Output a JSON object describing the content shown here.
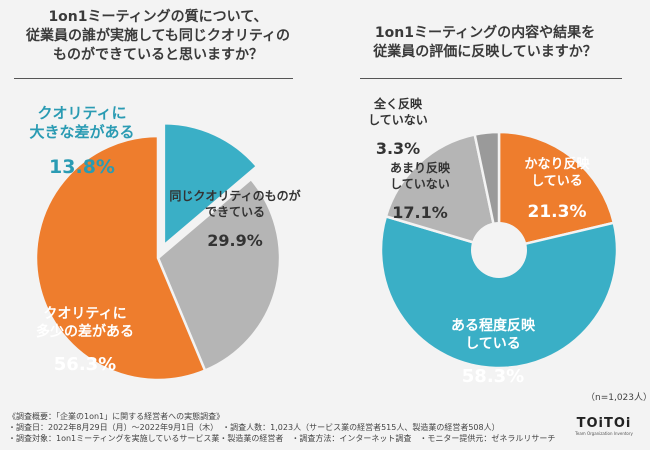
{
  "chart_data": [
    {
      "type": "pie",
      "title": "1on1ミーティングの質について、\n従業員の誰が実施しても同じクオリティの\nものができていると思いますか？",
      "categories": [
        "クオリティに大きな差がある",
        "同じクオリティのものができている",
        "クオリティに多少の差がある"
      ],
      "label_lines": [
        [
          "クオリティに",
          "大きな差がある"
        ],
        [
          "同じクオリティのものが",
          "できている"
        ],
        [
          "クオリティに",
          "多少の差がある"
        ]
      ],
      "values": [
        13.8,
        29.9,
        56.3
      ],
      "value_labels": [
        "13.8%",
        "29.9%",
        "56.3%"
      ],
      "colors": [
        "#3aafc6",
        "#b5b5b5",
        "#ee7d2d"
      ]
    },
    {
      "type": "pie",
      "title": "1on1ミーティングの内容や結果を\n従業員の評価に反映していますか？",
      "categories": [
        "かなり反映している",
        "ある程度反映している",
        "あまり反映していない",
        "全く反映していない"
      ],
      "label_lines": [
        [
          "かなり反映",
          "している"
        ],
        [
          "ある程度反映",
          "している"
        ],
        [
          "あまり反映",
          "していない"
        ],
        [
          "全く反映",
          "していない"
        ]
      ],
      "values": [
        21.3,
        58.3,
        17.1,
        3.3
      ],
      "value_labels": [
        "21.3%",
        "58.3%",
        "17.1%",
        "3.3%"
      ],
      "colors": [
        "#ee7d2d",
        "#3aafc6",
        "#b5b5b5",
        "#9a9a9a"
      ]
    }
  ],
  "sample_note": "（n=1,023人）",
  "footer": {
    "lines": [
      "《調査概要：「企業の1on1」に関する経営者への実態調査》",
      "・調査日：2022年8月29日（月）～2022年9月1日（木）　・調査人数：1,023人（サービス業の経営者515人、製造業の経営者508人）",
      "・調査対象：1on1ミーティングを実施しているサービス業・製造業の経営者　・調査方法：インターネット調査　・モニター提供元：ゼネラルリサーチ"
    ]
  },
  "logo": {
    "name": "TOiTOi",
    "tagline": "Team Organization Inventory"
  }
}
